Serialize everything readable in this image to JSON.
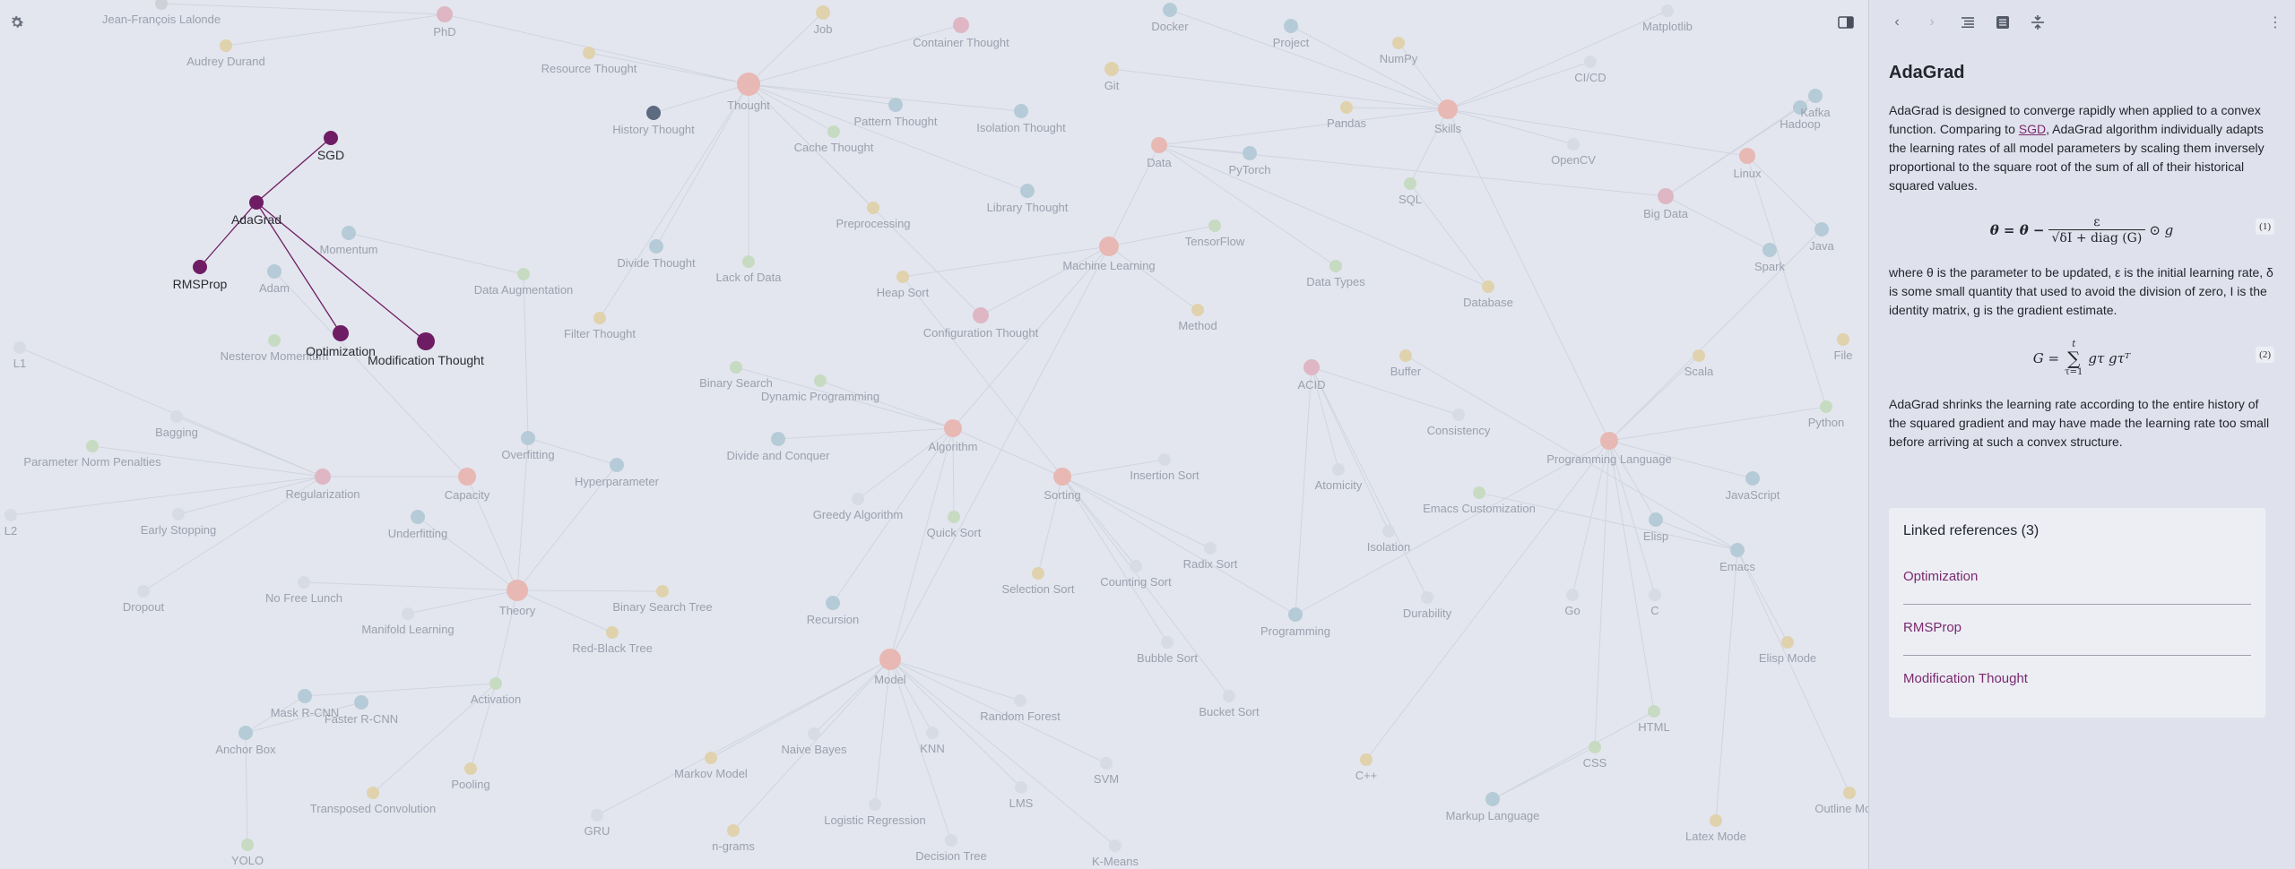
{
  "graph": {
    "settings_icon": "gear-icon",
    "toggle_sidebar_icon": "sidebar-toggle-icon",
    "highlight_color": "#6e1d64",
    "selected_node": "AdaGrad",
    "highlighted_nodes": [
      "SGD",
      "AdaGrad",
      "RMSProp",
      "Optimization",
      "Modification Thought"
    ],
    "background_labels": [
      "Jean-François Lalonde",
      "PhD",
      "Job",
      "Git",
      "Docker",
      "Project",
      "Matplotlib",
      "Audrey Durand",
      "Container Thought",
      "Resource Thought",
      "NumPy",
      "CI/CD",
      "Thought",
      "History Thought",
      "Pattern Thought",
      "Cache Thought",
      "Isolation Thought",
      "Pandas",
      "Skills",
      "Data",
      "PyTorch",
      "OpenCV",
      "Linux",
      "Hadoop",
      "Momentum",
      "Adam",
      "Nesterov Momentum",
      "L1",
      "L2",
      "Library Thought",
      "SQL",
      "Big Data",
      "Preprocessing",
      "TensorFlow",
      "Spark",
      "Java",
      "Data Augmentation",
      "Divide Thought",
      "Lack of Data",
      "Heap Sort",
      "Machine Learning",
      "Data Types",
      "Database",
      "Filter Thought",
      "Configuration Thought",
      "Method",
      "ACID",
      "Buffer",
      "Scala",
      "File",
      "Bagging",
      "Binary Search",
      "Dynamic Programming",
      "Python",
      "Parameter Norm Penalties",
      "Overfitting",
      "Divide and Conquer",
      "Algorithm",
      "Consistency",
      "Programming Language",
      "Regularization",
      "Capacity",
      "Hyperparameter",
      "Insertion Sort",
      "Atomicity",
      "Emacs Customization",
      "JavaScript",
      "Early Stopping",
      "Underfitting",
      "Greedy Algorithm",
      "Quick Sort",
      "Sorting",
      "Radix Sort",
      "Isolation",
      "Elisp",
      "Emacs",
      "Dropout",
      "No Free Lunch",
      "Theory",
      "Binary Search Tree",
      "Selection Sort",
      "Counting Sort",
      "Go",
      "C",
      "Manifold Learning",
      "Recursion",
      "Red-Black Tree",
      "Programming",
      "Durability",
      "Elisp Mode",
      "Bubble Sort",
      "Model",
      "Mask R-CNN",
      "Faster R-CNN",
      "Activation",
      "Random Forest",
      "Bucket Sort",
      "HTML",
      "Anchor Box",
      "KNN",
      "Naive Bayes",
      "Markov Model",
      "SVM",
      "C++",
      "CSS",
      "Pooling",
      "Transposed Convolution",
      "LMS",
      "Markup Language",
      "GRU",
      "Logistic Regression",
      "Latex Mode",
      "Outline Mode",
      "n-grams",
      "Decision Tree",
      "K-Means",
      "YOLO",
      "Kafka"
    ]
  },
  "sidebar": {
    "toolbar_icons": [
      "back-arrow-icon",
      "forward-arrow-icon",
      "outline-icon",
      "note-list-icon",
      "collapse-icon",
      "more-vertical-icon"
    ],
    "note": {
      "title": "AdaGrad",
      "para1_before": "AdaGrad is designed to converge rapidly when applied to a convex function. Comparing to ",
      "para1_link": "SGD",
      "para1_after": ", AdaGrad algorithm individually adapts the learning rates of all model parameters by scaling them inversely proportional to the square root of the sum of all of their historical squared values.",
      "eq1_lhs": "θ = θ −",
      "eq1_num": "ε",
      "eq1_den": "√δI + diag (G)",
      "eq1_rhs": "⊙ g",
      "eq1_tag": "(1)",
      "para2": "where θ is the parameter to be updated, ε is the initial learning rate, δ is some small quantity that used to avoid the division of zero, I is the identity matrix, g is the gradient estimate.",
      "eq2_lhs": "G =",
      "eq2_sum_top": "t",
      "eq2_sum": "∑",
      "eq2_sum_bottom": "τ=1",
      "eq2_rhs": "gτ gτᵀ",
      "eq2_tag": "(2)",
      "para3": "AdaGrad shrinks the learning rate according to the entire history of the squared gradient and may have made the learning rate too small before arriving at such a convex structure."
    },
    "linked_refs": {
      "heading": "Linked references (3)",
      "items": [
        "Optimization",
        "RMSProp",
        "Modification Thought"
      ]
    }
  }
}
